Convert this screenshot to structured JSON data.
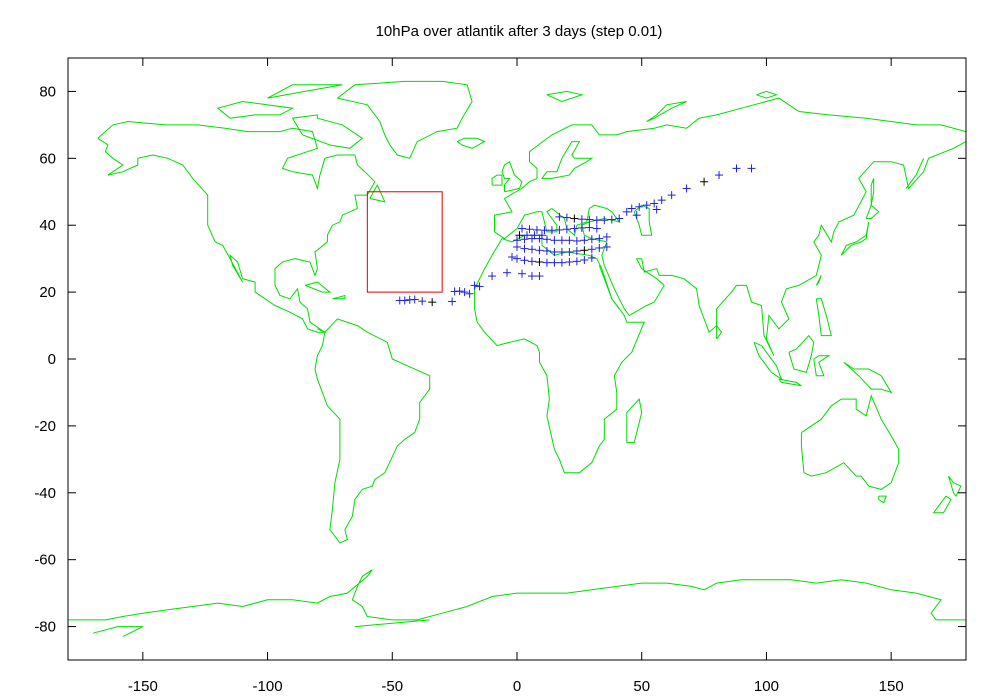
{
  "chart_data": {
    "type": "scatter",
    "title": "10hPa over atlantik after 3 days (step 0.01)",
    "xlabel": "",
    "ylabel": "",
    "xlim": [
      -180,
      180
    ],
    "ylim": [
      -90,
      90
    ],
    "xticks": [
      -150,
      -100,
      -50,
      0,
      50,
      100,
      150
    ],
    "yticks": [
      -80,
      -60,
      -40,
      -20,
      0,
      20,
      40,
      60,
      80
    ],
    "xtick_labels": [
      "-150",
      "-100",
      "-50",
      "0",
      "50",
      "100",
      "150"
    ],
    "ytick_labels": [
      "-80",
      "-60",
      "-40",
      "-20",
      "0",
      "20",
      "40",
      "60",
      "80"
    ],
    "grid": false,
    "colors": {
      "coastline": "#00dd00",
      "region": "#dd0000",
      "particles": "#1f1fdd",
      "particles_alt": "#000000",
      "axes": "#000000"
    },
    "region_box": {
      "lon_min": -60,
      "lon_max": -30,
      "lat_min": 20,
      "lat_max": 50
    },
    "series": [
      {
        "marker": "+",
        "points": [
          [
            -47,
            17.5
          ],
          [
            -45,
            17.5
          ],
          [
            -43,
            17.7
          ],
          [
            -41,
            17.8
          ],
          [
            -38,
            17.3
          ],
          [
            -34,
            17.0
          ],
          [
            -26,
            17.2
          ],
          [
            -25,
            20.2
          ],
          [
            -23,
            20.3
          ],
          [
            -21,
            20.0
          ],
          [
            -19,
            19.5
          ],
          [
            -17,
            22.0
          ],
          [
            -15,
            21.7
          ],
          [
            -10,
            24.8
          ],
          [
            -4,
            25.8
          ],
          [
            2,
            25.5
          ],
          [
            6,
            24.8
          ],
          [
            9,
            24.8
          ],
          [
            -2,
            30.5
          ],
          [
            0,
            30.0
          ],
          [
            3,
            29.5
          ],
          [
            6,
            29.2
          ],
          [
            9,
            29.0
          ],
          [
            12,
            28.8
          ],
          [
            15,
            28.8
          ],
          [
            18,
            28.8
          ],
          [
            21,
            29.0
          ],
          [
            24,
            29.2
          ],
          [
            27,
            29.6
          ],
          [
            30,
            30.2
          ],
          [
            0,
            33.5
          ],
          [
            3,
            33.0
          ],
          [
            6,
            32.8
          ],
          [
            9,
            32.5
          ],
          [
            12,
            32.3
          ],
          [
            15,
            32.0
          ],
          [
            18,
            32.0
          ],
          [
            21,
            32.0
          ],
          [
            24,
            32.3
          ],
          [
            27,
            32.5
          ],
          [
            30,
            32.8
          ],
          [
            33,
            33.2
          ],
          [
            36,
            33.5
          ],
          [
            0,
            35.5
          ],
          [
            3,
            35.8
          ],
          [
            6,
            36.0
          ],
          [
            9,
            36.0
          ],
          [
            12,
            35.8
          ],
          [
            15,
            35.5
          ],
          [
            18,
            35.5
          ],
          [
            21,
            35.5
          ],
          [
            24,
            35.3
          ],
          [
            27,
            35.5
          ],
          [
            30,
            35.8
          ],
          [
            33,
            36.0
          ],
          [
            36,
            36.5
          ],
          [
            1,
            37.0
          ],
          [
            4,
            37.0
          ],
          [
            7,
            37.0
          ],
          [
            10,
            37.0
          ],
          [
            2,
            39.0
          ],
          [
            5,
            38.8
          ],
          [
            8,
            38.6
          ],
          [
            11,
            38.5
          ],
          [
            14,
            38.5
          ],
          [
            17,
            38.6
          ],
          [
            20,
            38.8
          ],
          [
            23,
            39.0
          ],
          [
            26,
            39.2
          ],
          [
            29,
            39.3
          ],
          [
            32,
            39.0
          ],
          [
            17,
            42.5
          ],
          [
            20,
            42.3
          ],
          [
            23,
            42.0
          ],
          [
            26,
            41.8
          ],
          [
            29,
            41.7
          ],
          [
            32,
            41.5
          ],
          [
            35,
            41.5
          ],
          [
            38,
            41.7
          ],
          [
            41,
            42.0
          ],
          [
            44,
            44.0
          ],
          [
            46,
            45.0
          ],
          [
            49,
            45.5
          ],
          [
            52,
            46.0
          ],
          [
            55,
            46.5
          ],
          [
            58,
            47.5
          ],
          [
            48,
            43.0
          ],
          [
            56,
            44.7
          ],
          [
            62,
            49.0
          ],
          [
            68,
            51.0
          ],
          [
            75,
            53.0
          ],
          [
            81,
            55.0
          ],
          [
            88,
            57.0
          ],
          [
            94,
            57.0
          ]
        ]
      }
    ]
  }
}
